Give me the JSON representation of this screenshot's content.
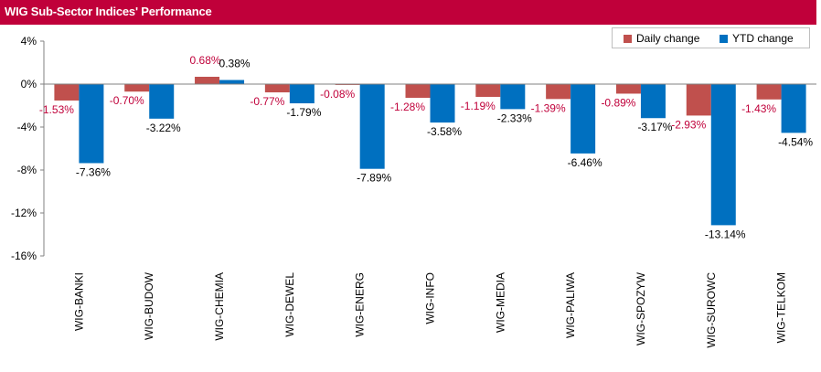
{
  "title": "WIG Sub-Sector Indices' Performance",
  "colors": {
    "title_bar": "#c0003a",
    "daily": "#c0504d",
    "ytd": "#0070c0",
    "daily_label": "#c0003a",
    "ytd_label": "#000000"
  },
  "legend": {
    "daily": "Daily change",
    "ytd": "YTD change"
  },
  "chart_data": {
    "type": "bar",
    "title": "WIG Sub-Sector Indices' Performance",
    "categories": [
      "WIG-BANKI",
      "WIG-BUDOW",
      "WIG-CHEMIA",
      "WIG-DEWEL",
      "WIG-ENERG",
      "WIG-INFO",
      "WIG-MEDIA",
      "WIG-PALIWA",
      "WIG-SPOZYW",
      "WIG-SUROWC",
      "WIG-TELKOM"
    ],
    "series": [
      {
        "name": "Daily change",
        "values": [
          -1.53,
          -0.7,
          0.68,
          -0.77,
          -0.08,
          -1.28,
          -1.19,
          -1.39,
          -0.89,
          -2.93,
          -1.43
        ],
        "labels": [
          "-1.53%",
          "-0.70%",
          "0.68%",
          "-0.77%",
          "-0.08%",
          "-1.28%",
          "-1.19%",
          "-1.39%",
          "-0.89%",
          "-2.93%",
          "-1.43%"
        ]
      },
      {
        "name": "YTD change",
        "values": [
          -7.36,
          -3.22,
          0.38,
          -1.79,
          -7.89,
          -3.58,
          -2.33,
          -6.46,
          -3.17,
          -13.14,
          -4.54
        ],
        "labels": [
          "-7.36%",
          "-3.22%",
          "0.38%",
          "-1.79%",
          "-7.89%",
          "-3.58%",
          "-2.33%",
          "-6.46%",
          "-3.17%",
          "-13.14%",
          "-4.54%"
        ]
      }
    ],
    "yticks": [
      4,
      0,
      -4,
      -8,
      -12,
      -16
    ],
    "ytick_labels": [
      "4%",
      "0%",
      "-4%",
      "-8%",
      "-12%",
      "-16%"
    ],
    "ylim": [
      -16,
      4
    ],
    "grid": false,
    "legend_position": "top-right"
  }
}
